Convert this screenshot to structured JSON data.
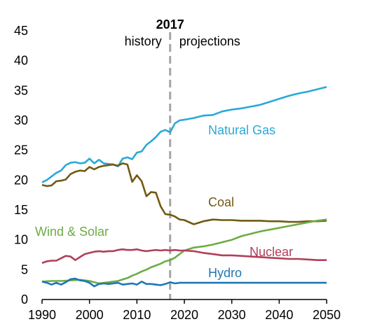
{
  "chart_data": {
    "type": "line",
    "title": "",
    "xlabel": "",
    "ylabel": "",
    "xlim": [
      1990,
      2050
    ],
    "ylim": [
      0,
      45
    ],
    "x_ticks": [
      "1990",
      "2000",
      "2010",
      "2020",
      "2030",
      "2040",
      "2050"
    ],
    "y_ticks": [
      "0",
      "5",
      "10",
      "15",
      "20",
      "25",
      "30",
      "35",
      "40",
      "45"
    ],
    "grid": false,
    "divider": {
      "x": 2017,
      "year_label": "2017",
      "left_label": "history",
      "right_label": "projections",
      "style": "dashed",
      "color": "#a6a6a6"
    },
    "series": [
      {
        "name": "Natural Gas",
        "color": "#29a9d8",
        "points": [
          [
            1990,
            19.6
          ],
          [
            1991,
            20
          ],
          [
            1992,
            20.6
          ],
          [
            1993,
            21.2
          ],
          [
            1994,
            21.6
          ],
          [
            1995,
            22.5
          ],
          [
            1996,
            22.9
          ],
          [
            1997,
            23
          ],
          [
            1998,
            22.8
          ],
          [
            1999,
            22.9
          ],
          [
            2000,
            23.6
          ],
          [
            2001,
            22.8
          ],
          [
            2002,
            23.4
          ],
          [
            2003,
            22.8
          ],
          [
            2004,
            22.7
          ],
          [
            2005,
            22.6
          ],
          [
            2006,
            22.3
          ],
          [
            2007,
            23.6
          ],
          [
            2008,
            23.8
          ],
          [
            2009,
            23.5
          ],
          [
            2010,
            24.6
          ],
          [
            2011,
            24.8
          ],
          [
            2012,
            25.9
          ],
          [
            2013,
            26.5
          ],
          [
            2014,
            27.2
          ],
          [
            2015,
            28.1
          ],
          [
            2016,
            28.4
          ],
          [
            2017,
            28
          ],
          [
            2018,
            29.5
          ],
          [
            2019,
            30
          ],
          [
            2020,
            30.1
          ],
          [
            2022,
            30.4
          ],
          [
            2024,
            30.8
          ],
          [
            2026,
            30.9
          ],
          [
            2028,
            31.5
          ],
          [
            2030,
            31.8
          ],
          [
            2032,
            32
          ],
          [
            2034,
            32.3
          ],
          [
            2036,
            32.6
          ],
          [
            2038,
            33.1
          ],
          [
            2040,
            33.6
          ],
          [
            2042,
            34.1
          ],
          [
            2044,
            34.5
          ],
          [
            2046,
            34.8
          ],
          [
            2048,
            35.2
          ],
          [
            2050,
            35.6
          ]
        ]
      },
      {
        "name": "Coal",
        "color": "#715a12",
        "points": [
          [
            1990,
            19.2
          ],
          [
            1991,
            19
          ],
          [
            1992,
            19.1
          ],
          [
            1993,
            19.8
          ],
          [
            1994,
            19.9
          ],
          [
            1995,
            20.1
          ],
          [
            1996,
            21
          ],
          [
            1997,
            21.4
          ],
          [
            1998,
            21.6
          ],
          [
            1999,
            21.5
          ],
          [
            2000,
            22.2
          ],
          [
            2001,
            21.8
          ],
          [
            2002,
            22.2
          ],
          [
            2003,
            22.4
          ],
          [
            2004,
            22.5
          ],
          [
            2005,
            22.6
          ],
          [
            2006,
            22.4
          ],
          [
            2007,
            22.8
          ],
          [
            2008,
            22.6
          ],
          [
            2009,
            19.7
          ],
          [
            2010,
            20.8
          ],
          [
            2011,
            19.8
          ],
          [
            2012,
            17.3
          ],
          [
            2013,
            18
          ],
          [
            2014,
            17.9
          ],
          [
            2015,
            15.6
          ],
          [
            2016,
            14.3
          ],
          [
            2017,
            14.2
          ],
          [
            2018,
            13.9
          ],
          [
            2019,
            13.4
          ],
          [
            2020,
            13.3
          ],
          [
            2022,
            12.6
          ],
          [
            2024,
            13.1
          ],
          [
            2026,
            13.4
          ],
          [
            2028,
            13.3
          ],
          [
            2030,
            13.3
          ],
          [
            2032,
            13.2
          ],
          [
            2034,
            13.2
          ],
          [
            2036,
            13.2
          ],
          [
            2038,
            13.1
          ],
          [
            2040,
            13.1
          ],
          [
            2042,
            13
          ],
          [
            2044,
            13
          ],
          [
            2046,
            13.1
          ],
          [
            2048,
            13.1
          ],
          [
            2050,
            13.2
          ]
        ]
      },
      {
        "name": "Wind & Solar",
        "color": "#6cac45",
        "points": [
          [
            1990,
            3
          ],
          [
            1992,
            3.1
          ],
          [
            1994,
            3.1
          ],
          [
            1996,
            3.2
          ],
          [
            1998,
            3.3
          ],
          [
            2000,
            3.1
          ],
          [
            2002,
            2.7
          ],
          [
            2004,
            2.9
          ],
          [
            2006,
            3.1
          ],
          [
            2008,
            3.6
          ],
          [
            2009,
            4
          ],
          [
            2010,
            4.3
          ],
          [
            2011,
            4.7
          ],
          [
            2012,
            5
          ],
          [
            2013,
            5.4
          ],
          [
            2014,
            5.7
          ],
          [
            2015,
            6
          ],
          [
            2016,
            6.4
          ],
          [
            2017,
            6.6
          ],
          [
            2018,
            7
          ],
          [
            2019,
            7.6
          ],
          [
            2020,
            8.2
          ],
          [
            2022,
            8.7
          ],
          [
            2024,
            8.9
          ],
          [
            2026,
            9.2
          ],
          [
            2028,
            9.6
          ],
          [
            2030,
            10
          ],
          [
            2032,
            10.6
          ],
          [
            2034,
            11
          ],
          [
            2036,
            11.4
          ],
          [
            2038,
            11.7
          ],
          [
            2040,
            12
          ],
          [
            2042,
            12.3
          ],
          [
            2044,
            12.6
          ],
          [
            2046,
            12.9
          ],
          [
            2048,
            13.2
          ],
          [
            2050,
            13.4
          ]
        ]
      },
      {
        "name": "Nuclear",
        "color": "#b13f5b",
        "points": [
          [
            1990,
            6.1
          ],
          [
            1991,
            6.4
          ],
          [
            1992,
            6.5
          ],
          [
            1993,
            6.5
          ],
          [
            1994,
            6.9
          ],
          [
            1995,
            7.3
          ],
          [
            1996,
            7.2
          ],
          [
            1997,
            6.6
          ],
          [
            1998,
            7.1
          ],
          [
            1999,
            7.6
          ],
          [
            2000,
            7.8
          ],
          [
            2001,
            8
          ],
          [
            2002,
            8.1
          ],
          [
            2003,
            8
          ],
          [
            2004,
            8.1
          ],
          [
            2005,
            8.1
          ],
          [
            2006,
            8.3
          ],
          [
            2007,
            8.4
          ],
          [
            2008,
            8.3
          ],
          [
            2009,
            8.3
          ],
          [
            2010,
            8.4
          ],
          [
            2011,
            8.2
          ],
          [
            2012,
            8.1
          ],
          [
            2013,
            8.2
          ],
          [
            2014,
            8.3
          ],
          [
            2015,
            8.2
          ],
          [
            2016,
            8.3
          ],
          [
            2017,
            8.2
          ],
          [
            2018,
            8.3
          ],
          [
            2019,
            8.2
          ],
          [
            2020,
            8.2
          ],
          [
            2022,
            8.1
          ],
          [
            2024,
            7.8
          ],
          [
            2026,
            7.6
          ],
          [
            2028,
            7.4
          ],
          [
            2030,
            7.4
          ],
          [
            2032,
            7.3
          ],
          [
            2034,
            7.2
          ],
          [
            2036,
            7.1
          ],
          [
            2038,
            7
          ],
          [
            2040,
            6.9
          ],
          [
            2042,
            6.8
          ],
          [
            2044,
            6.8
          ],
          [
            2046,
            6.7
          ],
          [
            2048,
            6.6
          ],
          [
            2050,
            6.6
          ]
        ]
      },
      {
        "name": "Hydro",
        "color": "#1f77b4",
        "points": [
          [
            1990,
            3
          ],
          [
            1991,
            2.8
          ],
          [
            1992,
            2.5
          ],
          [
            1993,
            2.8
          ],
          [
            1994,
            2.5
          ],
          [
            1995,
            2.9
          ],
          [
            1996,
            3.4
          ],
          [
            1997,
            3.5
          ],
          [
            1998,
            3.2
          ],
          [
            1999,
            3.1
          ],
          [
            2000,
            2.8
          ],
          [
            2001,
            2.2
          ],
          [
            2002,
            2.6
          ],
          [
            2003,
            2.7
          ],
          [
            2004,
            2.6
          ],
          [
            2005,
            2.7
          ],
          [
            2006,
            2.8
          ],
          [
            2007,
            2.5
          ],
          [
            2008,
            2.6
          ],
          [
            2009,
            2.7
          ],
          [
            2010,
            2.5
          ],
          [
            2011,
            3
          ],
          [
            2012,
            2.6
          ],
          [
            2013,
            2.6
          ],
          [
            2014,
            2.5
          ],
          [
            2015,
            2.4
          ],
          [
            2016,
            2.6
          ],
          [
            2017,
            2.9
          ],
          [
            2018,
            2.7
          ],
          [
            2019,
            2.8
          ],
          [
            2020,
            2.8
          ],
          [
            2025,
            2.8
          ],
          [
            2030,
            2.8
          ],
          [
            2035,
            2.8
          ],
          [
            2040,
            2.8
          ],
          [
            2045,
            2.8
          ],
          [
            2050,
            2.8
          ]
        ]
      }
    ]
  }
}
